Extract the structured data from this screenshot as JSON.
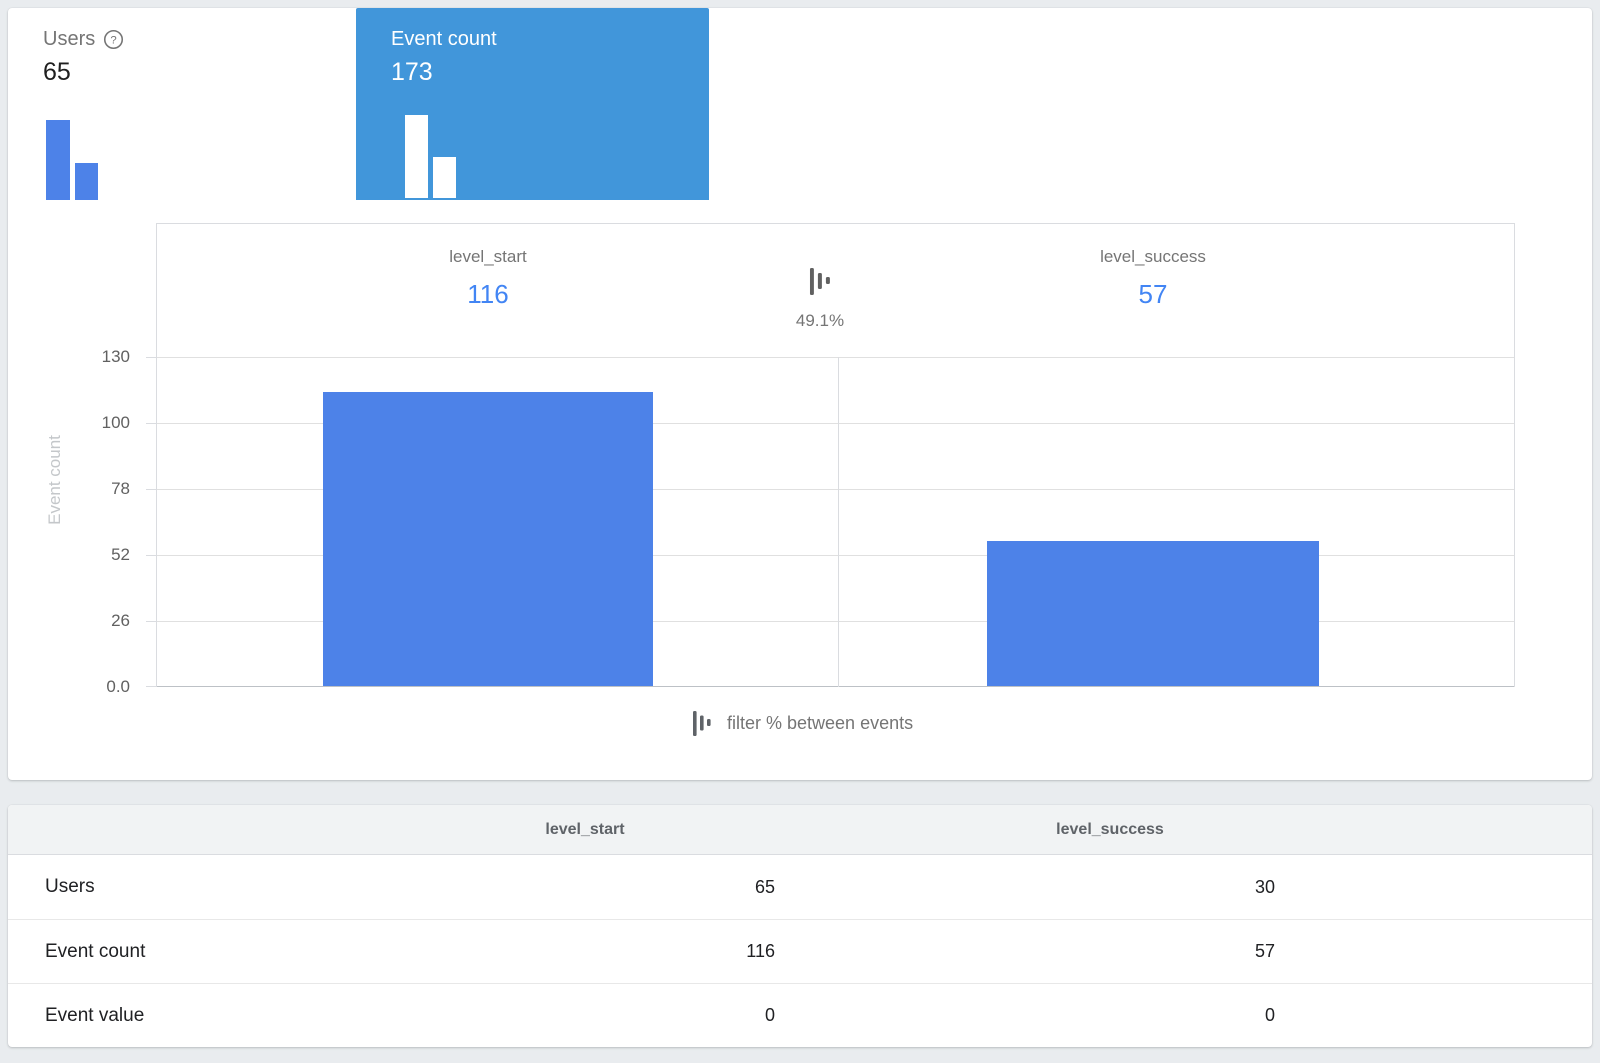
{
  "summary_cards": [
    {
      "label": "Users",
      "value": "65",
      "selected": false
    },
    {
      "label": "Event count",
      "value": "173",
      "selected": true
    }
  ],
  "chart": {
    "columns": [
      {
        "event": "level_start",
        "count": "116"
      },
      {
        "event": "level_success",
        "count": "57"
      }
    ],
    "transition_pct": "49.1%",
    "legend": "filter % between events",
    "y_axis": {
      "title": "Event count",
      "ticks": [
        "130",
        "100",
        "78",
        "52",
        "26",
        "0.0"
      ]
    }
  },
  "chart_data": {
    "type": "bar",
    "title": "",
    "categories": [
      "level_start",
      "level_success"
    ],
    "values": [
      116,
      57
    ],
    "xlabel": "",
    "ylabel": "Event count",
    "ylim": [
      0,
      130
    ],
    "ytick_labels": [
      "0.0",
      "26",
      "52",
      "78",
      "100",
      "130"
    ],
    "grid": true,
    "annotations": [
      "49.1% between level_start and level_success"
    ]
  },
  "table": {
    "columns": [
      "level_start",
      "level_success"
    ],
    "rows": [
      {
        "label": "Users",
        "values": [
          "65",
          "30"
        ]
      },
      {
        "label": "Event count",
        "values": [
          "116",
          "57"
        ]
      },
      {
        "label": "Event value",
        "values": [
          "0",
          "0"
        ]
      }
    ]
  },
  "icons": {
    "help": "question-mark-circle",
    "filter": "filter-percent-bars"
  },
  "colors": {
    "selected_tile": "#4196da",
    "bar_blue": "#4d82e8",
    "link_blue": "#4285f4",
    "page_bg": "#e9ecef"
  }
}
